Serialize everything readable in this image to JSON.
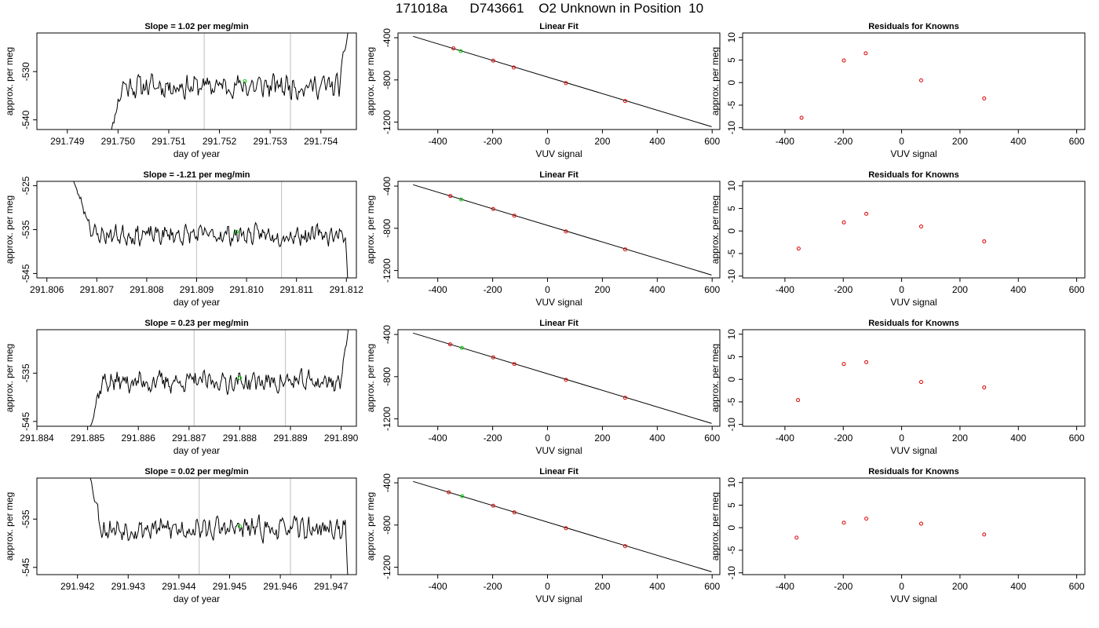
{
  "page": {
    "title": "171018a      D743661    O2 Unknown in Position  10"
  },
  "chart_data": [
    {
      "type": "line",
      "row": 1,
      "title": "Slope =  1.02  per meg/min",
      "xlabel": "day of year",
      "ylabel": "approx. per meg",
      "xlim": [
        291.7484,
        291.7547
      ],
      "ylim": [
        -542.0,
        -522.0
      ],
      "xticks": [
        291.749,
        291.75,
        291.751,
        291.752,
        291.753,
        291.754
      ],
      "xtick_labels": [
        "291.749",
        "291.750",
        "291.751",
        "291.752",
        "291.753",
        "291.754"
      ],
      "yticks": [
        -540,
        -530
      ],
      "ytick_labels": [
        "-540",
        "-530"
      ],
      "vlines": [
        291.7517,
        291.7534
      ],
      "trace": {
        "x0": 291.7498,
        "dx": 2e-05,
        "start": -545,
        "end": -520,
        "center": -533.0,
        "amp": 2.2,
        "n_lead": 14,
        "n_trail": 10,
        "seed": 11
      },
      "marker": {
        "x": 291.7525,
        "y": -532.0
      }
    },
    {
      "type": "scatter",
      "row": 1,
      "title": "Linear Fit",
      "xlabel": "VUV signal",
      "ylabel": "approx. per meg",
      "xlim": [
        -545,
        628
      ],
      "ylim": [
        -1270,
        -355
      ],
      "xticks": [
        -400,
        -200,
        0,
        200,
        400,
        600
      ],
      "xtick_labels": [
        "-400",
        "-200",
        "0",
        "200",
        "400",
        "600"
      ],
      "yticks": [
        -400,
        -800,
        -1200
      ],
      "ytick_labels": [
        "-400",
        "-800",
        "-1200"
      ],
      "fit_line": {
        "x": [
          -490,
          598
        ],
        "y": [
          -387,
          -1243
        ]
      },
      "points": [
        [
          -343,
          -501
        ],
        [
          -198,
          -617
        ],
        [
          -123,
          -682
        ],
        [
          67,
          -830
        ],
        [
          283,
          -1000
        ]
      ],
      "highlight": [
        [
          -316,
          -527
        ]
      ]
    },
    {
      "type": "scatter",
      "row": 1,
      "title": "Residuals for Knowns",
      "xlabel": "VUV signal",
      "ylabel": "approx. per meg",
      "xlim": [
        -545,
        628
      ],
      "ylim": [
        -10.4,
        11.0
      ],
      "xticks": [
        -400,
        -200,
        0,
        200,
        400,
        600
      ],
      "xtick_labels": [
        "-400",
        "-200",
        "0",
        "200",
        "400",
        "600"
      ],
      "yticks": [
        10,
        5,
        0,
        -5,
        -10
      ],
      "ytick_labels": [
        "10",
        "5",
        "0",
        "-5",
        "-10"
      ],
      "points": [
        [
          -343,
          -7.8
        ],
        [
          -198,
          4.9
        ],
        [
          -123,
          6.5
        ],
        [
          67,
          0.5
        ],
        [
          283,
          -3.5
        ]
      ]
    },
    {
      "type": "line",
      "row": 2,
      "title": "Slope =  -1.21  per meg/min",
      "xlabel": "day of year",
      "ylabel": "approx. per meg",
      "xlim": [
        291.8058,
        291.8122
      ],
      "ylim": [
        -546.0,
        -524.0
      ],
      "xticks": [
        291.806,
        291.807,
        291.808,
        291.809,
        291.81,
        291.811,
        291.812
      ],
      "xtick_labels": [
        "291.806",
        "291.807",
        "291.808",
        "291.809",
        "291.810",
        "291.811",
        "291.812"
      ],
      "yticks": [
        -545,
        -535,
        -525
      ],
      "ytick_labels": [
        "-545",
        "-535",
        "-525"
      ],
      "vlines": [
        291.809,
        291.8107
      ],
      "trace": {
        "x0": 291.8065,
        "dx": 2e-05,
        "start": -523,
        "end": -550,
        "center": -536.2,
        "amp": 2.0,
        "n_lead": 22,
        "n_trail": 3,
        "seed": 23
      },
      "marker": {
        "x": 291.8098,
        "y": -535.5
      }
    },
    {
      "type": "scatter",
      "row": 2,
      "title": "Linear Fit",
      "xlabel": "VUV signal",
      "ylabel": "approx. per meg",
      "xlim": [
        -545,
        628
      ],
      "ylim": [
        -1270,
        -355
      ],
      "xticks": [
        -400,
        -200,
        0,
        200,
        400,
        600
      ],
      "xtick_labels": [
        "-400",
        "-200",
        "0",
        "200",
        "400",
        "600"
      ],
      "yticks": [
        -400,
        -800,
        -1200
      ],
      "ytick_labels": [
        "-400",
        "-800",
        "-1200"
      ],
      "fit_line": {
        "x": [
          -490,
          598
        ],
        "y": [
          -387,
          -1243
        ]
      },
      "points": [
        [
          -354,
          -494
        ],
        [
          -198,
          -617
        ],
        [
          -121,
          -680
        ],
        [
          67,
          -830
        ],
        [
          283,
          -1000
        ]
      ],
      "highlight": [
        [
          -315,
          -527
        ]
      ]
    },
    {
      "type": "scatter",
      "row": 2,
      "title": "Residuals for Knowns",
      "xlabel": "VUV signal",
      "ylabel": "approx. per meg",
      "xlim": [
        -545,
        628
      ],
      "ylim": [
        -10.4,
        11.0
      ],
      "xticks": [
        -400,
        -200,
        0,
        200,
        400,
        600
      ],
      "xtick_labels": [
        "-400",
        "-200",
        "0",
        "200",
        "400",
        "600"
      ],
      "yticks": [
        10,
        5,
        0,
        -5,
        -10
      ],
      "ytick_labels": [
        "10",
        "5",
        "0",
        "-5",
        "-10"
      ],
      "points": [
        [
          -353,
          -3.9
        ],
        [
          -198,
          1.9
        ],
        [
          -121,
          3.8
        ],
        [
          67,
          1.0
        ],
        [
          283,
          -2.3
        ]
      ]
    },
    {
      "type": "line",
      "row": 3,
      "title": "Slope =  0.23  per meg/min",
      "xlabel": "day of year",
      "ylabel": "approx. per meg",
      "xlim": [
        291.884,
        291.8903
      ],
      "ylim": [
        -546.0,
        -526.0
      ],
      "xticks": [
        291.884,
        291.885,
        291.886,
        291.887,
        291.888,
        291.889,
        291.89
      ],
      "xtick_labels": [
        "291.884",
        "291.885",
        "291.886",
        "291.887",
        "291.888",
        "291.889",
        "291.890"
      ],
      "yticks": [
        -545,
        -535
      ],
      "ytick_labels": [
        "-545",
        "-535"
      ],
      "vlines": [
        291.8871,
        291.8889
      ],
      "trace": {
        "x0": 291.885,
        "dx": 2e-05,
        "start": -548,
        "end": -524,
        "center": -536.8,
        "amp": 2.0,
        "n_lead": 14,
        "n_trail": 8,
        "seed": 37
      },
      "marker": {
        "x": 291.888,
        "y": -536.0
      }
    },
    {
      "type": "scatter",
      "row": 3,
      "title": "Linear Fit",
      "xlabel": "VUV signal",
      "ylabel": "approx. per meg",
      "xlim": [
        -545,
        628
      ],
      "ylim": [
        -1270,
        -355
      ],
      "xticks": [
        -400,
        -200,
        0,
        200,
        400,
        600
      ],
      "xtick_labels": [
        "-400",
        "-200",
        "0",
        "200",
        "400",
        "600"
      ],
      "yticks": [
        -400,
        -800,
        -1200
      ],
      "ytick_labels": [
        "-400",
        "-800",
        "-1200"
      ],
      "fit_line": {
        "x": [
          -490,
          598
        ],
        "y": [
          -387,
          -1243
        ]
      },
      "points": [
        [
          -355,
          -494
        ],
        [
          -198,
          -617
        ],
        [
          -121,
          -680
        ],
        [
          67,
          -830
        ],
        [
          283,
          -1000
        ]
      ],
      "highlight": [
        [
          -312,
          -527
        ]
      ]
    },
    {
      "type": "scatter",
      "row": 3,
      "title": "Residuals for Knowns",
      "xlabel": "VUV signal",
      "ylabel": "approx. per meg",
      "xlim": [
        -545,
        628
      ],
      "ylim": [
        -10.4,
        11.0
      ],
      "xticks": [
        -400,
        -200,
        0,
        200,
        400,
        600
      ],
      "xtick_labels": [
        "-400",
        "-200",
        "0",
        "200",
        "400",
        "600"
      ],
      "yticks": [
        10,
        5,
        0,
        -5,
        -10
      ],
      "ytick_labels": [
        "10",
        "5",
        "0",
        "-5",
        "-10"
      ],
      "points": [
        [
          -355,
          -4.6
        ],
        [
          -198,
          3.4
        ],
        [
          -121,
          3.8
        ],
        [
          67,
          -0.6
        ],
        [
          283,
          -1.8
        ]
      ]
    },
    {
      "type": "line",
      "row": 4,
      "title": "Slope =  0.02  per meg/min",
      "xlabel": "day of year",
      "ylabel": "approx. per meg",
      "xlim": [
        291.9412,
        291.9475
      ],
      "ylim": [
        -546.5,
        -526.5
      ],
      "xticks": [
        291.942,
        291.943,
        291.944,
        291.945,
        291.946,
        291.947
      ],
      "xtick_labels": [
        "291.942",
        "291.943",
        "291.944",
        "291.945",
        "291.946",
        "291.947"
      ],
      "yticks": [
        -545,
        -535
      ],
      "ytick_labels": [
        "-545",
        "-535"
      ],
      "vlines": [
        291.9444,
        291.9462
      ],
      "trace": {
        "x0": 291.9422,
        "dx": 2e-05,
        "start": -524,
        "end": -549,
        "center": -537.0,
        "amp": 2.1,
        "n_lead": 14,
        "n_trail": 3,
        "seed": 53
      },
      "marker": {
        "x": 291.9452,
        "y": -536.5
      }
    },
    {
      "type": "scatter",
      "row": 4,
      "title": "Linear Fit",
      "xlabel": "VUV signal",
      "ylabel": "approx. per meg",
      "xlim": [
        -545,
        628
      ],
      "ylim": [
        -1270,
        -355
      ],
      "xticks": [
        -400,
        -200,
        0,
        200,
        400,
        600
      ],
      "xtick_labels": [
        "-400",
        "-200",
        "0",
        "200",
        "400",
        "600"
      ],
      "yticks": [
        -400,
        -800,
        -1200
      ],
      "ytick_labels": [
        "-400",
        "-800",
        "-1200"
      ],
      "fit_line": {
        "x": [
          -490,
          598
        ],
        "y": [
          -387,
          -1243
        ]
      },
      "points": [
        [
          -360,
          -490
        ],
        [
          -198,
          -617
        ],
        [
          -121,
          -680
        ],
        [
          67,
          -830
        ],
        [
          283,
          -1000
        ]
      ],
      "highlight": [
        [
          -311,
          -527
        ]
      ]
    },
    {
      "type": "scatter",
      "row": 4,
      "title": "Residuals for Knowns",
      "xlabel": "VUV signal",
      "ylabel": "approx. per meg",
      "xlim": [
        -545,
        628
      ],
      "ylim": [
        -10.4,
        11.0
      ],
      "xticks": [
        -400,
        -200,
        0,
        200,
        400,
        600
      ],
      "xtick_labels": [
        "-400",
        "-200",
        "0",
        "200",
        "400",
        "600"
      ],
      "yticks": [
        10,
        5,
        0,
        -5,
        -10
      ],
      "ytick_labels": [
        "10",
        "5",
        "0",
        "-5",
        "-10"
      ],
      "points": [
        [
          -360,
          -2.2
        ],
        [
          -198,
          1.1
        ],
        [
          -121,
          2.0
        ],
        [
          67,
          0.9
        ],
        [
          283,
          -1.5
        ]
      ]
    }
  ],
  "colors": {
    "axis": "#000000",
    "trace": "#000000",
    "vline": "#c8c8c8",
    "known_point": "#dd0000",
    "unknown_point": "#00cc00",
    "fit_line": "#000000"
  }
}
